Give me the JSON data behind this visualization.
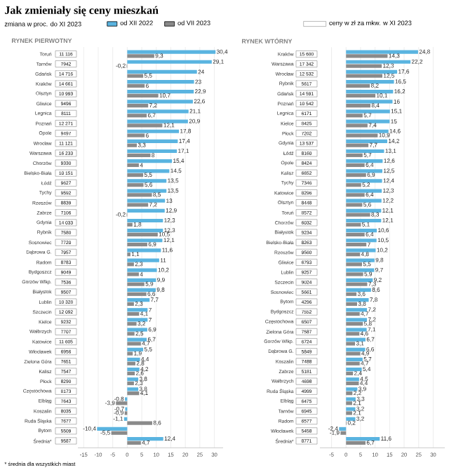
{
  "chart_data": [
    {
      "type": "bar",
      "orientation": "horizontal",
      "title": "RYNEK PIERWOTNY",
      "legend": "top",
      "grid": "x",
      "annotations": [
        "Jak zmieniały się ceny mieszkań",
        "zmiana w proc. do XI 2023",
        "* średnia dla wszystkich miast"
      ],
      "categories": [
        "Toruń",
        "Tarnów",
        "Gdańsk",
        "Kraków",
        "Olsztyn",
        "Gliwice",
        "Legnica",
        "Poznań",
        "Opole",
        "Wrocław",
        "Warszawa",
        "Chorzów",
        "Bielsko-Biała",
        "Łódź",
        "Tychy",
        "Rzeszów",
        "Zabrze",
        "Gdynia",
        "Rybnik",
        "Sosnowiec",
        "Dąbrowa G.",
        "Radom",
        "Bydgoszcz",
        "Gorzów Wlkp.",
        "Białystok",
        "Lublin",
        "Szczecin",
        "Kielce",
        "Wałbrzych",
        "Katowice",
        "Włocławek",
        "Zielona Góra",
        "Kalisz",
        "Płock",
        "Częstochowa",
        "Elbląg",
        "Koszalin",
        "Ruda Śląska",
        "Bytom",
        "Średnia*"
      ],
      "xlim": [
        -17,
        33
      ],
      "xticks": [
        -15,
        -10,
        -5,
        0,
        5,
        10,
        15,
        20,
        25,
        30
      ],
      "series": [
        {
          "name": "od XII 2022",
          "color": "#5ab4e0",
          "values": [
            30.4,
            29.1,
            24,
            23,
            22.9,
            22.6,
            21.1,
            20.9,
            17.8,
            17.4,
            17.1,
            15.4,
            14.5,
            13.5,
            13.5,
            13,
            12.9,
            12.3,
            12.3,
            12.1,
            11.6,
            11,
            10.2,
            9.9,
            9.8,
            7.7,
            7,
            7,
            6.9,
            6.7,
            5.5,
            4.4,
            4.2,
            3.8,
            3.8,
            -0.8,
            -0.7,
            -1.1,
            -10.4,
            12.4
          ],
          "value_labels": [
            "30,4",
            "29,1",
            "24",
            "23",
            "22,9",
            "22,6",
            "21,1",
            "20,9",
            "17,8",
            "17,4",
            "17,1",
            "15,4",
            "14,5",
            "13,5",
            "13,5",
            "13",
            "12,9",
            "12,3",
            "12,3",
            "12,1",
            "11,6",
            "11",
            "10,2",
            "9,9",
            "9,8",
            "7,7",
            "7",
            "7",
            "6,9",
            "6,7",
            "5,5",
            "4,4",
            "4,2",
            "3,8",
            "3,8",
            "-0,8",
            "-0,7",
            "-1,1",
            "-10,4",
            "12,4"
          ]
        },
        {
          "name": "od VII 2023",
          "color": "#8a8a8a",
          "values": [
            9.3,
            -0.2,
            5.5,
            6,
            10.7,
            7.2,
            6.7,
            12.1,
            6,
            3.3,
            8,
            4,
            5.5,
            5.6,
            8.5,
            7.2,
            -0.2,
            1.8,
            10.5,
            6.9,
            1.1,
            2.3,
            4,
            5.9,
            6.6,
            2.3,
            4.1,
            3.2,
            2.5,
            4.7,
            1.9,
            2.8,
            2.6,
            2.3,
            4.1,
            -3.9,
            -0.9,
            8.6,
            -5.5,
            4.7
          ],
          "value_labels": [
            "9,3",
            "-0,2",
            "5,5",
            "6",
            "10,7",
            "7,2",
            "6,7",
            "12,1",
            "6",
            "3,3",
            "8",
            "4",
            "5,5",
            "5,6",
            "8,5",
            "7,2",
            "-0,2",
            "1,8",
            "10,5",
            "6,9",
            "1,1",
            "2,3",
            "4",
            "5,9",
            "6,6",
            "2,3",
            "4,1",
            "3,2",
            "2,5",
            "4,7",
            "1,9",
            "2,8",
            "2,6",
            "2,3",
            "4,1",
            "-3,9",
            "-0,9",
            "8,6",
            "-5,5",
            "4,7"
          ]
        }
      ]
    },
    {
      "type": "other",
      "legend": "top",
      "series": [
        {
          "name": "ceny w zł za mkw. w XI 2023",
          "color": "#ffffff",
          "values": [
            11116,
            7942,
            14716,
            14661,
            10993,
            9496,
            8111,
            12271,
            9497,
            11121,
            16233,
            9330,
            10151,
            9627,
            9592,
            8839,
            7106,
            14033,
            7580,
            7720,
            7957,
            8783,
            9049,
            7536,
            9507,
            10328,
            12092,
            9232,
            7707,
            11605,
            6956,
            7651,
            7547,
            8290,
            8173,
            7643,
            8035,
            7677,
            5509,
            9587
          ],
          "value_labels": [
            "11 116",
            "7942",
            "14 716",
            "14 661",
            "10 993",
            "9496",
            "8111",
            "12 271",
            "9497",
            "11 121",
            "16 233",
            "9330",
            "10 151",
            "9627",
            "9592",
            "8839",
            "7106",
            "14 033",
            "7580",
            "7720",
            "7957",
            "8783",
            "9049",
            "7536",
            "9507",
            "10 328",
            "12 092",
            "9232",
            "7707",
            "11 605",
            "6956",
            "7651",
            "7547",
            "8290",
            "8173",
            "7643",
            "8035",
            "7677",
            "5509",
            "9587"
          ]
        }
      ]
    },
    {
      "type": "bar",
      "orientation": "horizontal",
      "title": "RYNEK WTÓRNY",
      "grid": "x",
      "categories": [
        "Kraków",
        "Warszawa",
        "Wrocław",
        "Rybnik",
        "Gdańsk",
        "Poznań",
        "Legnica",
        "Kielce",
        "Płock",
        "Gdynia",
        "Łódź",
        "Opole",
        "Kalisz",
        "Tychy",
        "Katowice",
        "Olsztyn",
        "Toruń",
        "Chorzów",
        "Białystok",
        "Bielsko-Biała",
        "Rzeszów",
        "Gliwice",
        "Lublin",
        "Szczecin",
        "Sosnowiec",
        "Bytom",
        "Bydgoszcz",
        "Częstochowa",
        "Zielona Góra",
        "Gorzów Wlkp.",
        "Dąbrowa G.",
        "Koszalin",
        "Zabrze",
        "Wałbrzych",
        "Ruda Śląska",
        "Elbląg",
        "Tarnów",
        "Radom",
        "Włocławek",
        "Średnia*"
      ],
      "xlim": [
        -9,
        34
      ],
      "xticks": [
        -5,
        0,
        5,
        10,
        15,
        20,
        25,
        30
      ],
      "series": [
        {
          "color": "#5ab4e0",
          "values": [
            24.8,
            22.2,
            17.6,
            16.5,
            16.2,
            16,
            15.1,
            15,
            14.6,
            14.2,
            13.1,
            12.6,
            12.5,
            12.4,
            12.3,
            12.2,
            12.1,
            12.1,
            10.6,
            10.5,
            10.2,
            9.8,
            9.7,
            9.2,
            8.6,
            7.8,
            7.2,
            7.2,
            7.1,
            6.7,
            6.6,
            5.7,
            5.4,
            4.5,
            3.9,
            3.3,
            3.2,
            3.2,
            -2.4,
            11.6
          ],
          "value_labels": [
            "24,8",
            "22,2",
            "17,6",
            "16,5",
            "16,2",
            "16",
            "15,1",
            "15",
            "14,6",
            "14,2",
            "13,1",
            "12,6",
            "12,5",
            "12,4",
            "12,3",
            "12,2",
            "12,1",
            "12,1",
            "10,6",
            "10,5",
            "10,2",
            "9,8",
            "9,7",
            "9,2",
            "8,6",
            "7,8",
            "7,2",
            "7,2",
            "7,1",
            "6,7",
            "6,6",
            "5,7",
            "5,4",
            "4,5",
            "3,9",
            "3,3",
            "3,2",
            "3,2",
            "-2,4",
            "11,6"
          ]
        },
        {
          "color": "#8a8a8a",
          "values": [
            14.3,
            12.3,
            12.5,
            8.2,
            10.1,
            8.4,
            5.7,
            7.4,
            10.9,
            7.7,
            5.7,
            6.4,
            6.9,
            5.2,
            6.4,
            5.6,
            8.3,
            5.1,
            6.4,
            7,
            4.8,
            5.5,
            5.9,
            7.3,
            3.6,
            3.8,
            4.7,
            5.8,
            4.6,
            3.1,
            4.9,
            4.7,
            2.4,
            4.4,
            2.2,
            2.1,
            2.1,
            0.2,
            -1.9,
            6.7
          ],
          "value_labels": [
            "14,3",
            "12,3",
            "12,5",
            "8,2",
            "10,1",
            "8,4",
            "5,7",
            "7,4",
            "10,9",
            "7,7",
            "5,7",
            "6,4",
            "6,9",
            "5,2",
            "6,4",
            "5,6",
            "8,3",
            "5,1",
            "6,4",
            "7",
            "4,8",
            "5,5",
            "5,9",
            "7,3",
            "3,6",
            "3,8",
            "4,7",
            "5,8",
            "4,6",
            "3,1",
            "4,9",
            "4,7",
            "2,4",
            "4,4",
            "2,2",
            "2,1",
            "2,1",
            "0,2",
            "-1,9",
            "6,7"
          ]
        }
      ]
    },
    {
      "type": "other",
      "series": [
        {
          "color": "#ffffff",
          "values": [
            15600,
            17342,
            12532,
            5617,
            14591,
            10542,
            6171,
            8425,
            7202,
            13537,
            8160,
            8424,
            6652,
            7346,
            8296,
            8448,
            8572,
            6032,
            9234,
            8263,
            9560,
            6793,
            9257,
            9024,
            5661,
            4296,
            7552,
            6507,
            7587,
            6724,
            5849,
            7488,
            5181,
            4698,
            4999,
            6475,
            6945,
            6577,
            5458,
            8771
          ],
          "value_labels": [
            "15 600",
            "17 342",
            "12 532",
            "5617",
            "14 591",
            "10 542",
            "6171",
            "8425",
            "7202",
            "13 537",
            "8160",
            "8424",
            "6652",
            "7346",
            "8296",
            "8448",
            "8572",
            "6032",
            "9234",
            "8263",
            "9560",
            "6793",
            "9257",
            "9024",
            "5661",
            "4296",
            "7552",
            "6507",
            "7587",
            "6724",
            "5849",
            "7488",
            "5181",
            "4698",
            "4999",
            "6475",
            "6945",
            "6577",
            "5458",
            "8771"
          ]
        }
      ]
    }
  ]
}
